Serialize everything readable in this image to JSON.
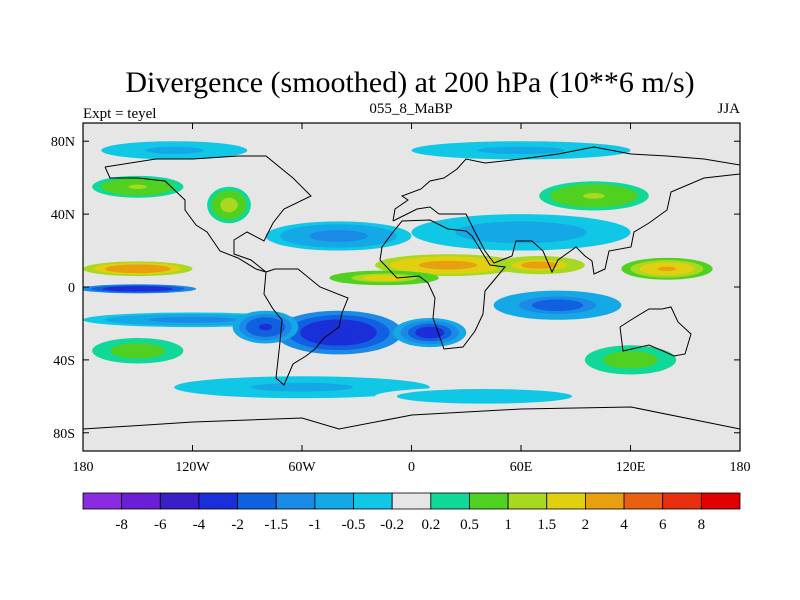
{
  "chart_data": {
    "type": "heatmap",
    "title": "Divergence (smoothed) at 200 hPa (10**6 m/s)",
    "subtitle_left": "Expt = teyel",
    "subtitle_center": "055_8_MaBP",
    "subtitle_right": "JJA",
    "x_range": [
      -180,
      180
    ],
    "y_range": [
      -90,
      90
    ],
    "x_ticks": [
      {
        "value": -180,
        "label": "180"
      },
      {
        "value": -120,
        "label": "120W"
      },
      {
        "value": -60,
        "label": "60W"
      },
      {
        "value": 0,
        "label": "0"
      },
      {
        "value": 60,
        "label": "60E"
      },
      {
        "value": 120,
        "label": "120E"
      },
      {
        "value": 180,
        "label": "180"
      }
    ],
    "y_ticks": [
      {
        "value": 80,
        "label": "80N"
      },
      {
        "value": 40,
        "label": "40N"
      },
      {
        "value": 0,
        "label": "0"
      },
      {
        "value": -40,
        "label": "40S"
      },
      {
        "value": -80,
        "label": "80S"
      }
    ],
    "colorbar": {
      "labels": [
        "-8",
        "-6",
        "-4",
        "-2",
        "-1.5",
        "-1",
        "-0.5",
        "-0.2",
        "0.2",
        "0.5",
        "1",
        "1.5",
        "2",
        "4",
        "6",
        "8"
      ],
      "colors": [
        "#8a2be2",
        "#6a1fd6",
        "#3a1fc8",
        "#1a2fd8",
        "#1060e0",
        "#1a8ae6",
        "#14a8e6",
        "#10c8e6",
        "#e6e6e6",
        "#10d898",
        "#50d020",
        "#a8d820",
        "#e0d010",
        "#e8a010",
        "#e86010",
        "#e83010",
        "#e00000"
      ]
    },
    "field_blobs": [
      {
        "lon": -150,
        "lat": 10,
        "rx": 30,
        "ry": 4,
        "v": 3.2
      },
      {
        "lon": -150,
        "lat": -1,
        "rx": 32,
        "ry": 2.5,
        "v": -3.2
      },
      {
        "lon": -120,
        "lat": -18,
        "rx": 60,
        "ry": 4,
        "v": -1.2
      },
      {
        "lon": 20,
        "lat": 12,
        "rx": 40,
        "ry": 6,
        "v": 2.8
      },
      {
        "lon": 70,
        "lat": 12,
        "rx": 25,
        "ry": 5,
        "v": 2.5
      },
      {
        "lon": 140,
        "lat": 10,
        "rx": 25,
        "ry": 6,
        "v": 2.2
      },
      {
        "lon": -15,
        "lat": 5,
        "rx": 30,
        "ry": 4,
        "v": 1.8
      },
      {
        "lon": -40,
        "lat": -25,
        "rx": 35,
        "ry": 12,
        "v": -3.5
      },
      {
        "lon": 10,
        "lat": -25,
        "rx": 20,
        "ry": 8,
        "v": -2.5
      },
      {
        "lon": 80,
        "lat": -10,
        "rx": 35,
        "ry": 8,
        "v": -1.8
      },
      {
        "lon": -80,
        "lat": -22,
        "rx": 18,
        "ry": 9,
        "v": -2.2
      },
      {
        "lon": -40,
        "lat": 28,
        "rx": 40,
        "ry": 8,
        "v": -1.2
      },
      {
        "lon": 60,
        "lat": 30,
        "rx": 60,
        "ry": 10,
        "v": -0.9
      },
      {
        "lon": -150,
        "lat": 55,
        "rx": 25,
        "ry": 6,
        "v": 1.0
      },
      {
        "lon": -100,
        "lat": 45,
        "rx": 12,
        "ry": 10,
        "v": 1.2
      },
      {
        "lon": 100,
        "lat": 50,
        "rx": 30,
        "ry": 8,
        "v": 1.0
      },
      {
        "lon": -150,
        "lat": -35,
        "rx": 25,
        "ry": 7,
        "v": 0.9
      },
      {
        "lon": 120,
        "lat": -40,
        "rx": 25,
        "ry": 8,
        "v": 0.8
      },
      {
        "lon": -60,
        "lat": -55,
        "rx": 70,
        "ry": 6,
        "v": -0.6
      },
      {
        "lon": 40,
        "lat": -60,
        "rx": 60,
        "ry": 5,
        "v": -0.5
      },
      {
        "lon": -130,
        "lat": 75,
        "rx": 40,
        "ry": 5,
        "v": -0.6
      },
      {
        "lon": 60,
        "lat": 75,
        "rx": 60,
        "ry": 5,
        "v": -0.7
      }
    ]
  }
}
